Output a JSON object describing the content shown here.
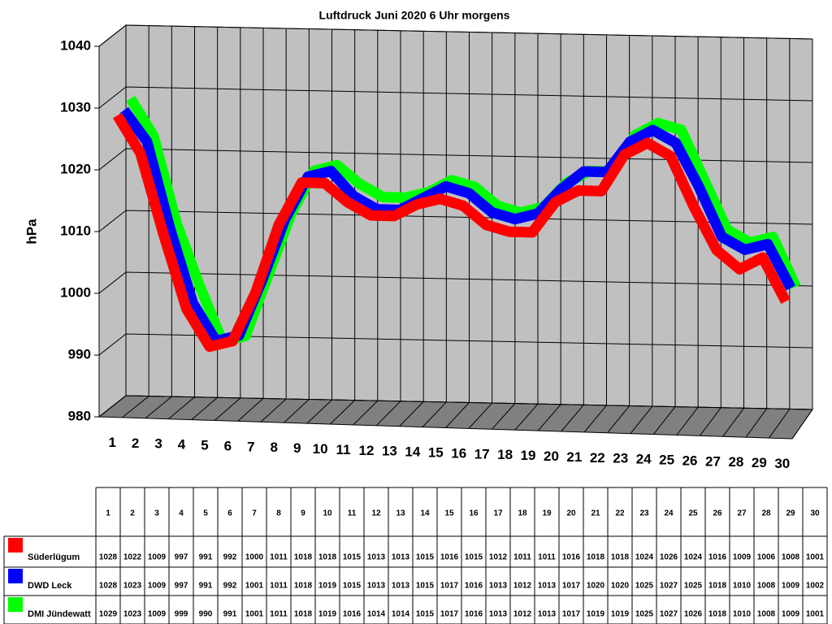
{
  "chart_data": {
    "type": "line",
    "title": "Luftdruck Juni 2020 6 Uhr morgens",
    "y_label": "hPa",
    "categories": [
      "1",
      "2",
      "3",
      "4",
      "5",
      "6",
      "7",
      "8",
      "9",
      "10",
      "11",
      "12",
      "13",
      "14",
      "15",
      "16",
      "17",
      "18",
      "19",
      "20",
      "21",
      "22",
      "23",
      "24",
      "25",
      "26",
      "27",
      "28",
      "29",
      "30"
    ],
    "ylim": [
      980,
      1040
    ],
    "yticks": [
      980,
      990,
      1000,
      1010,
      1020,
      1030,
      1040
    ],
    "grid": true,
    "series": [
      {
        "name": "Süderlügum",
        "color": "#ff0000",
        "values": [
          1028,
          1022,
          1009,
          997,
          991,
          992,
          1000,
          1011,
          1018,
          1018,
          1015,
          1013,
          1013,
          1015,
          1016,
          1015,
          1012,
          1011,
          1011,
          1016,
          1018,
          1018,
          1024,
          1026,
          1024,
          1016,
          1009,
          1006,
          1008,
          1001
        ]
      },
      {
        "name": "DWD Leck",
        "color": "#0000ff",
        "values": [
          1028,
          1023,
          1009,
          997,
          991,
          992,
          1001,
          1011,
          1018,
          1019,
          1015,
          1013,
          1013,
          1015,
          1017,
          1016,
          1013,
          1012,
          1013,
          1017,
          1020,
          1020,
          1025,
          1027,
          1025,
          1018,
          1010,
          1008,
          1009,
          1002
        ]
      },
      {
        "name": "DMI Jündewatt",
        "color": "#00ff00",
        "values": [
          1029,
          1023,
          1009,
          999,
          990,
          991,
          1001,
          1011,
          1018,
          1019,
          1016,
          1014,
          1014,
          1015,
          1017,
          1016,
          1013,
          1012,
          1013,
          1017,
          1019,
          1019,
          1025,
          1027,
          1026,
          1018,
          1010,
          1008,
          1009,
          1001
        ]
      }
    ]
  }
}
